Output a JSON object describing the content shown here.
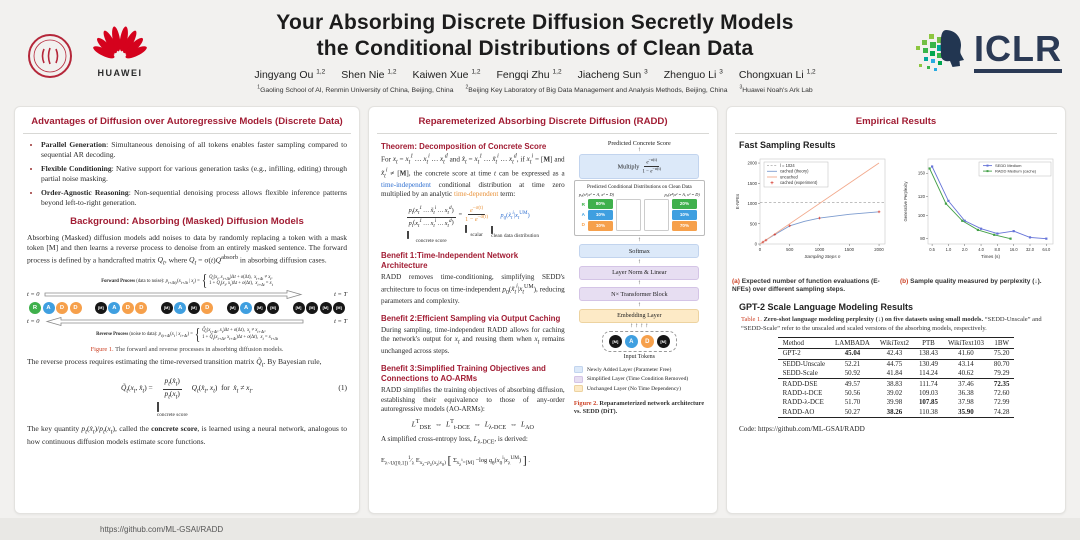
{
  "header": {
    "title_line1": "Your Absorbing Discrete Diffusion Secretly Models",
    "title_line2": "the Conditional Distributions of Clean Data",
    "authors": [
      {
        "name": "Jingyang Ou",
        "sup": "1,2"
      },
      {
        "name": "Shen Nie",
        "sup": "1,2"
      },
      {
        "name": "Kaiwen Xue",
        "sup": "1,2"
      },
      {
        "name": "Fengqi Zhu",
        "sup": "1,2"
      },
      {
        "name": "Jiacheng Sun",
        "sup": "3"
      },
      {
        "name": "Zhenguo Li",
        "sup": "3"
      },
      {
        "name": "Chongxuan Li",
        "sup": "1,2"
      }
    ],
    "affiliations": [
      {
        "sup": "1",
        "text": "Gaoling School of AI, Renmin University of China, Beijing, China"
      },
      {
        "sup": "2",
        "text": "Beijing Key Laboratory of Big Data Management and Analysis Methods, Beijing, China"
      },
      {
        "sup": "3",
        "text": "Huawei Noah's Ark Lab"
      }
    ],
    "logos": {
      "huawei": "HUAWEI",
      "iclr": "ICLR"
    }
  },
  "footer": {
    "url": "https://github.com/ML-GSAI/RADD"
  },
  "left": {
    "section1": {
      "title": "Advantages of Diffusion over Autoregressive Models (Discrete Data)",
      "bullets": [
        {
          "lead": "Parallel Generation",
          "text": "Simultaneous denoising of all tokens enables faster sampling compared to sequential AR decoding."
        },
        {
          "lead": "Flexible Conditioning",
          "text": "Native support for various generation tasks (e.g., infilling, editing) through partial noise masking."
        },
        {
          "lead": "Order-Agnostic Reasoning",
          "text": "Non-sequential denoising process allows flexible inference patterns beyond left-to-right generation."
        }
      ]
    },
    "section2": {
      "title": "Background: Absorbing (Masked) Diffusion Models",
      "intro_html": "Absorbing (Masked) diffusion models add noises to data by randomly replacing a token with a mask token [M] and then learns a reverse process to denoise from an entirely masked sentence. The forward process is defined by a handcrafted matrix <i>Q<sub>t</sub></i>, where <i>Q<sub>t</sub></i> = σ(<i>t</i>)<i>Q</i><sup>absorb</sup> in absorbing diffusion cases.",
      "para2_html": "The reverse process requires estimating the time-reversed transition matrix <i>Q̃<sub>t</sub></i>. By Bayesian rule,",
      "para3_html": "The key quantity <i>p<sub>t</sub></i>(<i>x̂<sub>t</sub></i>)/<i>p<sub>t</sub></i>(<i>x<sub>t</sub></i>), called the <b>concrete score</b>, is learned using a neural network, analogous to how continuous diffusion models estimate score functions."
    },
    "figure1": {
      "forward_eq_html": "<b>Forward Process</b> (data to noise): <i>p<sub>t+Δt|t</sub></i>(<i>x<sub>t+Δt</sub></i> | <i>x<sub>t</sub></i>) =",
      "forward_case1_html": "<i>Q<sub>t</sub></i>(<i>x<sub>t</sub></i>, <i>x<sub>t+Δt</sub></i>)Δ<i>t</i> + <i>o</i>(Δ<i>t</i>),&nbsp;&nbsp;<i>x<sub>t+Δt</sub></i> ≠ <i>x<sub>t</sub></i>,",
      "forward_case2_html": "1 + <i>Q<sub>t</sub></i>(<i>x<sub>t</sub></i>, <i>x<sub>t</sub></i>)Δ<i>t</i> + <i>o</i>(Δ<i>t</i>),&nbsp;&nbsp;<i>x<sub>t+Δt</sub></i> = <i>x<sub>t</sub></i>",
      "reverse_eq_html": "<b>Reverse Process</b> (noise to data): <i>p<sub>t|t+Δt</sub></i>(<i>x<sub>t</sub></i> | <i>x<sub>t+Δt</sub></i>) =",
      "reverse_case1_html": "<i>Q̃<sub>t</sub></i>(<i>x<sub>t+Δt</sub></i>, <i>x<sub>t</sub></i>)Δ<i>t</i> + <i>o</i>(Δ<i>t</i>),&nbsp;&nbsp;<i>x<sub>t</sub></i> ≠ <i>x<sub>t+Δt</sub></i>,",
      "reverse_case2_html": "1 + <i>Q̃<sub>t</sub></i>(<i>x<sub>t+Δt</sub></i>, <i>x<sub>t+Δt</sub></i>)Δ<i>t</i> + <i>o</i>(Δ<i>t</i>),&nbsp;&nbsp;<i>x<sub>t</sub></i> = <i>x<sub>t+Δt</sub></i>",
      "t0": "t = 0",
      "tT": "t = T",
      "sequences": [
        [
          "R",
          "A",
          "D",
          "D"
        ],
        [
          "M",
          "A",
          "D",
          "D"
        ],
        [
          "M",
          "A",
          "M",
          "D"
        ],
        [
          "M",
          "A",
          "M",
          "M"
        ],
        [
          "M",
          "M",
          "M",
          "M"
        ]
      ],
      "token_colors": {
        "R": "#3fb04c",
        "A": "#3f9fe0",
        "D": "#f6a04b",
        "M": "#161616"
      },
      "caption_label": "Figure 1.",
      "caption_text": " The forward and reverse processes in absorbing diffusion models."
    },
    "equation1": {
      "lhs_html": "<i>Q̃<sub>t</sub></i>(<i>x<sub>t</sub></i>, <i>x̂<sub>t</sub></i>) =",
      "frac_top_html": "<i>p<sub>t</sub></i>(<i>x̂<sub>t</sub></i>)",
      "frac_bot_html": "<i>p<sub>t</sub></i>(<i>x<sub>t</sub></i>)",
      "brace_label": "concrete score",
      "rhs_html": "<i>Q<sub>t</sub></i>(<i>x̂<sub>t</sub></i>, <i>x<sub>t</sub></i>)&nbsp;&nbsp;for&nbsp;&nbsp;<i>x̂<sub>t</sub></i> ≠ <i>x<sub>t</sub></i>.",
      "number": "(1)"
    }
  },
  "middle": {
    "title": "Reparemeterized Absorbing Discrete Diffusion (RADD)",
    "theorem": {
      "title": "Theorem: Decomposition of Concrete Score",
      "body_html": "For <i>x<sub>t</sub></i> = <i>x<sub>t</sub><sup>1</sup> … x<sub>t</sub><sup>i</sup> … x<sub>t</sub><sup>d</sup></i> and <i>x̂<sub>t</sub></i> = <i>x<sub>t</sub><sup>1</sup> … x̃<sub>t</sub><sup>i</sup> … x<sub>t</sub><sup>d</sup></i>, if <i>x<sub>t</sub><sup>i</sup></i> = [<b>M</b>] and <i>x̃<sub>t</sub><sup>i</sup></i> ≠ [<b>M</b>], the concrete score at time <i>t</i> can be expressed as a <em>time-independent</em> conditional distribution at time zero multiplied by an analytic <u>time-dependent</u> term:",
      "eq_lhs_top_html": "<i>p<sub>t</sub></i>(<i>x<sub>t</sub><sup>1</sup> … x̃<sub>t</sub><sup>i</sup> … x<sub>t</sub><sup>d</sup></i>)",
      "eq_lhs_bot_html": "<i>p<sub>t</sub></i>(<i>x<sub>t</sub><sup>1</sup> … x<sub>t</sub><sup>i</sup> … x<sub>t</sub><sup>d</sup></i>)",
      "eq_mid_top_html": "<i>e</i><sup>−σ(t)</sup>",
      "eq_mid_bot_html": "1 − <i>e</i><sup>−σ(t)</sup>",
      "eq_rhs_html": "<i>p</i><sub>0</sub>(<i>x̃<sub>t</sub><sup>i</sup></i>|<i>x<sub>t</sub></i><sup>UM</sup>)",
      "label_lhs": "concrete score",
      "label_mid": "scalar",
      "label_rhs": "clean data distribution"
    },
    "benefits": [
      {
        "title": "Benefit 1:Time-Independent Network Architecture",
        "body_html": "RADD removes time-conditioning, simplifying SEDD's architecture to focus on time-independent <i>p</i><sub>0</sub>(<i>x̃<sub>t</sub><sup>i</sup></i>|<i>x<sub>t</sub></i><sup>UM</sup>), reducing parameters and complexity."
      },
      {
        "title": "Benefit 2:Efficient Sampling via Output Caching",
        "body_html": "During sampling, time-independent RADD allows for caching the network's output for <i>x<sub>t</sub></i> and reusing them when <i>x<sub>t</sub></i> remains unchanged across steps."
      },
      {
        "title": "Benefit 3:Simplified Training Objectives and Connections to AO-ARMs",
        "body_html": "RADD simplifies the training objectives of absorbing diffusion, establishing their equivalence to those of any-order autoregressive models (AO-ARMs):"
      }
    ],
    "chain_html": "<i>L</i><sup>T</sup><sub>DSE</sub> &nbsp;⇔&nbsp; <i>L</i><sup>T</sup><sub>t-DCE</sub> &nbsp;⇔&nbsp; <i>L</i><sub>λ-DCE</sub> &nbsp;⇔&nbsp; <i>L</i><sub>AO</sub>",
    "loss_intro_html": "A simplified cross-entropy loss, <i>L</i><sub>λ-DCE</sub>, is derived:",
    "loss_eq_html": "E<sub>λ~U([0,1])</sub><sup>1</sup>&frasl;<sub>λ</sub> E<sub><i>x</i><sub>λ</sub>~<i>p</i><sub>λ</sub>(<i>x</i><sub>λ</sub>|<i>x</i><sub>0</sub>)</sub> <span class=\"bigbr\">[</span> Σ<sub><i>x</i><sub>λ</sub><sup>i</sup>=[M]</sub> −log <i>q</i><sub>θ</sub>(<i>x</i><sub>0</sub><sup>i</sup>|<i>x</i><sub>λ</sub><sup>UM</sup>) <span class=\"bigbr\">]</span> .",
    "figure2": {
      "top_label": "Predicted Concrete Score",
      "multiply_label": "Multiply",
      "multiply_frac_top_html": "<i>e</i><sup>−σ(t)</sup>",
      "multiply_frac_bot_html": "1 − <i>e</i><sup>−σ(t)</sup>",
      "bigbox_title": "Predicted Conditional Distributions on Clean Data",
      "formula_left": "p₀(x¹|x² = A, x³ = D)",
      "formula_right": "p₀(x⁴|x² = A, x³ = D)",
      "row_labels": [
        "R",
        "A",
        "D"
      ],
      "columns": [
        [
          "80%",
          "10%",
          "10%"
        ],
        null,
        null,
        [
          "20%",
          "10%",
          "70%"
        ]
      ],
      "softmax": "Softmax",
      "layernorm": "Layer Norm & Linear",
      "transformer": "N× Transformer Block",
      "embedding": "Embedding Layer",
      "tokens": [
        "M",
        "A",
        "D",
        "M"
      ],
      "input_label": "Input Tokens",
      "legend": [
        {
          "color": "#dce9f9",
          "border": "#c2d4ee",
          "label": "Newly Added Layer  (Parameter Free)"
        },
        {
          "color": "#e7def2",
          "border": "#d4c4e6",
          "label": "Simplified Layer (Time Condition Removed)"
        },
        {
          "color": "#fdeac6",
          "border": "#edd3a0",
          "label": "Unchanged Layer (No Time Dependency)"
        }
      ],
      "caption_label": "Figure 2.",
      "caption_text": " Reparameterized network architecture vs. SEDD (DiT)."
    }
  },
  "right": {
    "title": "Empirical Results",
    "fast_label": "Fast Sampling Results",
    "caption_a_label": "(a)",
    "caption_a_text": " Expected number of function evaluations (E-NFEs) over different sampling steps.",
    "caption_b_label": "(b)",
    "caption_b_text": " Sample quality measured by perplexity (↓).",
    "gpt2_label": "GPT-2 Scale Language Modeling Results",
    "table_caption_label": "Table 1.",
    "table_caption_bold": " Zero-shot language modeling perplexity (↓) on five datasets using small models.",
    "table_caption_rest": " “SEDD-Unscale” and “SEDD-Scale” refer to the unscaled and scaled versions of the absorbing models, respectively.",
    "table": {
      "headers": [
        "Method",
        "LAMBADA",
        "WikiText2",
        "PTB",
        "WikiText103",
        "1BW"
      ],
      "groups": [
        [
          {
            "method": "GPT-2",
            "values": [
              "45.04",
              "42.43",
              "138.43",
              "41.60",
              "75.20"
            ],
            "bold": [
              0
            ]
          }
        ],
        [
          {
            "method": "SEDD-Unscale",
            "values": [
              "52.21",
              "44.75",
              "130.49",
              "43.14",
              "80.70"
            ],
            "bold": []
          },
          {
            "method": "SEDD-Scale",
            "values": [
              "50.92",
              "41.84",
              "114.24",
              "40.62",
              "79.29"
            ],
            "bold": []
          }
        ],
        [
          {
            "method": "RADD-DSE",
            "values": [
              "49.57",
              "38.83",
              "111.74",
              "37.46",
              "72.35"
            ],
            "bold": [
              4
            ]
          },
          {
            "method": "RADD-t-DCE",
            "values": [
              "50.56",
              "39.02",
              "109.03",
              "36.38",
              "72.60"
            ],
            "bold": []
          },
          {
            "method": "RADD-λ-DCE",
            "values": [
              "51.70",
              "39.98",
              "107.85",
              "37.98",
              "72.99"
            ],
            "bold": [
              2
            ]
          },
          {
            "method": "RADD-AO",
            "values": [
              "50.27",
              "38.26",
              "110.38",
              "35.90",
              "74.28"
            ],
            "bold": [
              1,
              3
            ]
          }
        ]
      ]
    },
    "code_line": "Code: https://github.com/ML-GSAI/RADD"
  },
  "chart_data": [
    {
      "type": "line",
      "title": "(a) Expected number of function evaluations (E-NFEs) over different sampling steps",
      "xlabel": "Sampling Steps n",
      "ylabel": "E-NFEs",
      "xlim": [
        0,
        2100
      ],
      "ylim": [
        0,
        2100
      ],
      "xticks": [
        0,
        500,
        1000,
        1500,
        2000
      ],
      "yticks": [
        0,
        500,
        1000,
        1500,
        2000
      ],
      "legend_position": "upper-left",
      "series": [
        {
          "name": "l = 1024",
          "style": "hline",
          "color": "#999999",
          "y": 1024
        },
        {
          "name": "cached (theory)",
          "style": "line",
          "color": "#7d9ccf",
          "points": [
            [
              0,
              0
            ],
            [
              125,
              120
            ],
            [
              250,
              235
            ],
            [
              500,
              450
            ],
            [
              750,
              560
            ],
            [
              1000,
              640
            ],
            [
              1500,
              735
            ],
            [
              2000,
              795
            ]
          ]
        },
        {
          "name": "uncached",
          "style": "line",
          "color": "#f2a98c",
          "points": [
            [
              0,
              0
            ],
            [
              2000,
              2000
            ]
          ]
        },
        {
          "name": "cached (experiment)",
          "style": "markers",
          "color": "#d63a2e",
          "points": [
            [
              50,
              48
            ],
            [
              100,
              95
            ],
            [
              250,
              235
            ],
            [
              500,
              450
            ],
            [
              1000,
              640
            ],
            [
              2000,
              795
            ]
          ]
        }
      ]
    },
    {
      "type": "line",
      "title": "(b) Sample quality measured by perplexity (↓)",
      "xlabel": "Times (s)",
      "ylabel": "Generative Perplexity",
      "xscale": "log",
      "yscale": "log",
      "xticks": [
        0.5,
        1.0,
        2.0,
        4.0,
        8.0,
        16.0,
        32.0,
        64.0
      ],
      "yticks": [
        80,
        100,
        120,
        150
      ],
      "legend_position": "upper-right",
      "series": [
        {
          "name": "SEDD Medium",
          "style": "line-marker",
          "color": "#6674d8",
          "points": [
            [
              0.5,
              160
            ],
            [
              1.0,
              115
            ],
            [
              2.0,
              95
            ],
            [
              4.0,
              88
            ],
            [
              8.0,
              84
            ],
            [
              16.0,
              86
            ],
            [
              32.0,
              81
            ],
            [
              64.0,
              80
            ]
          ]
        },
        {
          "name": "RADD Medium (cache)",
          "style": "line-marker",
          "color": "#44a048",
          "points": [
            [
              0.45,
              157
            ],
            [
              0.9,
              112
            ],
            [
              1.8,
              95
            ],
            [
              3.5,
              87
            ],
            [
              7.0,
              83
            ],
            [
              14.0,
              80
            ]
          ]
        }
      ]
    }
  ]
}
